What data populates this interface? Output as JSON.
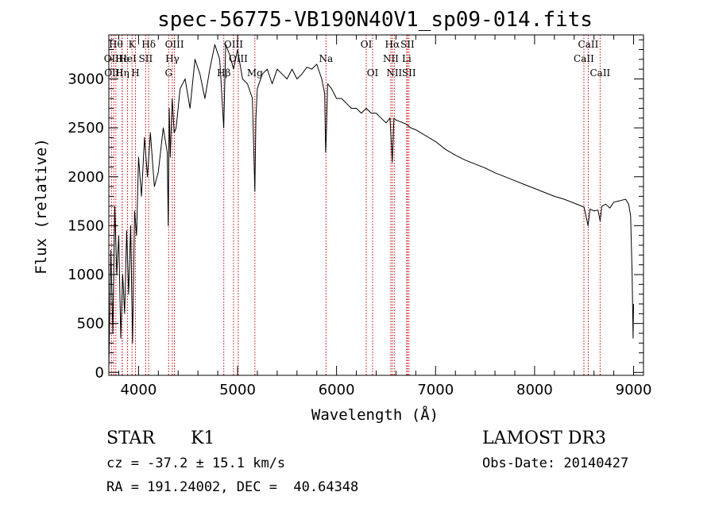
{
  "chart_data": {
    "type": "line",
    "title": "spec-56775-VB190N40V1_sp09-014.fits",
    "xlabel": "Wavelength (Å)",
    "ylabel": "Flux (relative)",
    "xlim": [
      3700,
      9100
    ],
    "ylim": [
      -30,
      3450
    ],
    "xticks": [
      4000,
      5000,
      6000,
      7000,
      8000,
      9000
    ],
    "yticks": [
      0,
      500,
      1000,
      1500,
      2000,
      2500,
      3000
    ],
    "series": [
      {
        "name": "flux",
        "x": [
          3700,
          3720,
          3740,
          3760,
          3780,
          3800,
          3820,
          3840,
          3860,
          3880,
          3900,
          3920,
          3940,
          3960,
          3980,
          4000,
          4030,
          4060,
          4090,
          4120,
          4160,
          4200,
          4250,
          4290,
          4300,
          4310,
          4320,
          4340,
          4360,
          4380,
          4420,
          4470,
          4520,
          4570,
          4620,
          4670,
          4720,
          4770,
          4820,
          4860,
          4880,
          4920,
          4960,
          5000,
          5050,
          5100,
          5150,
          5175,
          5185,
          5200,
          5250,
          5300,
          5350,
          5400,
          5450,
          5500,
          5550,
          5600,
          5650,
          5700,
          5750,
          5800,
          5850,
          5880,
          5890,
          5896,
          5910,
          5950,
          6000,
          6050,
          6100,
          6150,
          6200,
          6250,
          6300,
          6350,
          6400,
          6450,
          6500,
          6540,
          6563,
          6580,
          6600,
          6650,
          6700,
          6750,
          6800,
          6850,
          6900,
          6950,
          7000,
          7100,
          7200,
          7300,
          7400,
          7500,
          7600,
          7700,
          7800,
          7900,
          8000,
          8100,
          8200,
          8300,
          8400,
          8500,
          8540,
          8560,
          8600,
          8640,
          8662,
          8680,
          8720,
          8760,
          8800,
          8840,
          8880,
          8920,
          8950,
          8970,
          8985,
          8995,
          9000
        ],
        "y": [
          50,
          1250,
          400,
          1700,
          1000,
          1400,
          350,
          1000,
          600,
          1450,
          800,
          1500,
          300,
          1650,
          1400,
          2200,
          1800,
          2400,
          2000,
          2450,
          1900,
          2050,
          2500,
          2250,
          1500,
          2700,
          2200,
          2800,
          2450,
          2500,
          2900,
          3000,
          2700,
          3200,
          3050,
          2800,
          3100,
          3350,
          3200,
          2500,
          3350,
          3250,
          3100,
          3300,
          3000,
          2950,
          2800,
          1850,
          2600,
          2900,
          3050,
          3100,
          2950,
          3100,
          3050,
          3000,
          3100,
          3000,
          3050,
          3120,
          3100,
          3150,
          3000,
          2850,
          2250,
          2400,
          2950,
          2900,
          2800,
          2800,
          2750,
          2700,
          2700,
          2650,
          2700,
          2650,
          2650,
          2600,
          2550,
          2600,
          2150,
          2600,
          2580,
          2560,
          2540,
          2500,
          2480,
          2450,
          2420,
          2390,
          2360,
          2280,
          2220,
          2170,
          2130,
          2090,
          2040,
          2000,
          1960,
          1920,
          1880,
          1840,
          1800,
          1770,
          1730,
          1690,
          1500,
          1670,
          1650,
          1660,
          1550,
          1700,
          1720,
          1680,
          1740,
          1750,
          1760,
          1770,
          1720,
          1600,
          1000,
          350,
          700
        ]
      }
    ],
    "spectral_lines": [
      {
        "wavelength": 3727,
        "label": "OII",
        "row": 2
      },
      {
        "wavelength": 3750,
        "label": "OIII",
        "row": 3
      },
      {
        "wavelength": 3771,
        "label": "Hθ",
        "row": 1
      },
      {
        "wavelength": 3835,
        "label": "He",
        "row": 2
      },
      {
        "wavelength": 3835,
        "label": "Hη",
        "row": 3
      },
      {
        "wavelength": 3889,
        "label": "HeI",
        "row": 2
      },
      {
        "wavelength": 3934,
        "label": "K",
        "row": 1
      },
      {
        "wavelength": 3969,
        "label": "H",
        "row": 3
      },
      {
        "wavelength": 4072,
        "label": "SII",
        "row": 2
      },
      {
        "wavelength": 4102,
        "label": "Hδ",
        "row": 1
      },
      {
        "wavelength": 4304,
        "label": "G",
        "row": 3
      },
      {
        "wavelength": 4341,
        "label": "Hγ",
        "row": 2
      },
      {
        "wavelength": 4363,
        "label": "OIII",
        "row": 1
      },
      {
        "wavelength": 4861,
        "label": "Hβ",
        "row": 3
      },
      {
        "wavelength": 4959,
        "label": "OIII",
        "row": 1
      },
      {
        "wavelength": 5007,
        "label": "OIII",
        "row": 2
      },
      {
        "wavelength": 5175,
        "label": "Mg",
        "row": 3
      },
      {
        "wavelength": 5893,
        "label": "Na",
        "row": 2
      },
      {
        "wavelength": 6300,
        "label": "OI",
        "row": 1
      },
      {
        "wavelength": 6364,
        "label": "OI",
        "row": 3
      },
      {
        "wavelength": 6548,
        "label": "NII",
        "row": 2
      },
      {
        "wavelength": 6563,
        "label": "Hα",
        "row": 1
      },
      {
        "wavelength": 6583,
        "label": "NII",
        "row": 3
      },
      {
        "wavelength": 6708,
        "label": "Li",
        "row": 2
      },
      {
        "wavelength": 6716,
        "label": "SII",
        "row": 1
      },
      {
        "wavelength": 6731,
        "label": "SII",
        "row": 3
      },
      {
        "wavelength": 8498,
        "label": "CaII",
        "row": 2
      },
      {
        "wavelength": 8542,
        "label": "CaII",
        "row": 1
      },
      {
        "wavelength": 8662,
        "label": "CaII",
        "row": 3
      }
    ],
    "line_color": "#000000",
    "marker_color": "#cc0000"
  },
  "info": {
    "class": "STAR",
    "subclass": "K1",
    "survey": "LAMOST DR3",
    "redshift": "cz = -37.2 ± 15.1 km/s",
    "obs_date": "Obs-Date: 20140427",
    "coords": "RA = 191.24002, DEC =  40.64348"
  }
}
